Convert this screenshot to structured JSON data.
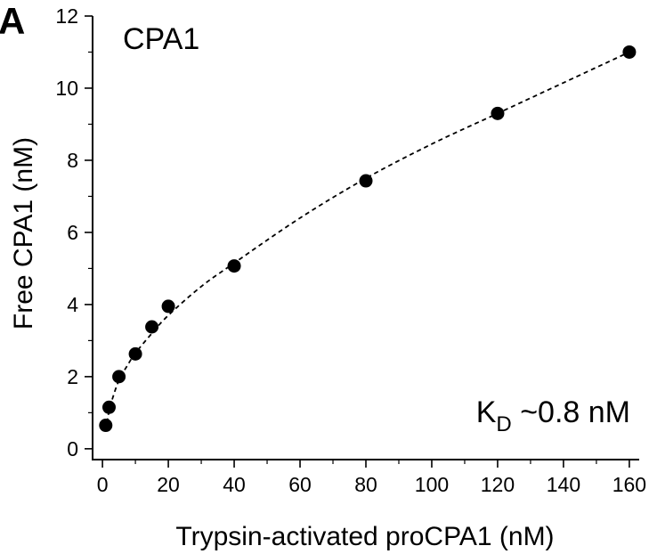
{
  "panel_label": "A",
  "chart_data": {
    "type": "scatter",
    "title": "CPA1",
    "xlabel": "Trypsin-activated proCPA1 (nM)",
    "ylabel": "Free CPA1 (nM)",
    "xlim": [
      -3,
      163
    ],
    "ylim": [
      -0.3,
      12
    ],
    "xticks": [
      0,
      20,
      40,
      60,
      80,
      100,
      120,
      140,
      160
    ],
    "yticks": [
      0,
      2,
      4,
      6,
      8,
      10,
      12
    ],
    "annotation": {
      "main": "K",
      "subscript": "D",
      "rest": " ~0.8 nM"
    },
    "series": [
      {
        "x": [
          1,
          2,
          5,
          10,
          15,
          20,
          40,
          80,
          120,
          160
        ],
        "y": [
          0.65,
          1.15,
          2.0,
          2.63,
          3.38,
          3.95,
          5.07,
          7.43,
          9.3,
          11.0
        ]
      }
    ],
    "fit": {
      "style": "dashed",
      "x": [
        1,
        2,
        3,
        5,
        7.5,
        10,
        15,
        20,
        30,
        40,
        60,
        80,
        100,
        120,
        140,
        160
      ],
      "y": [
        0.5,
        1.05,
        1.38,
        1.9,
        2.3,
        2.65,
        3.2,
        3.7,
        4.5,
        5.15,
        6.4,
        7.5,
        8.45,
        9.3,
        10.15,
        11.0
      ]
    }
  }
}
